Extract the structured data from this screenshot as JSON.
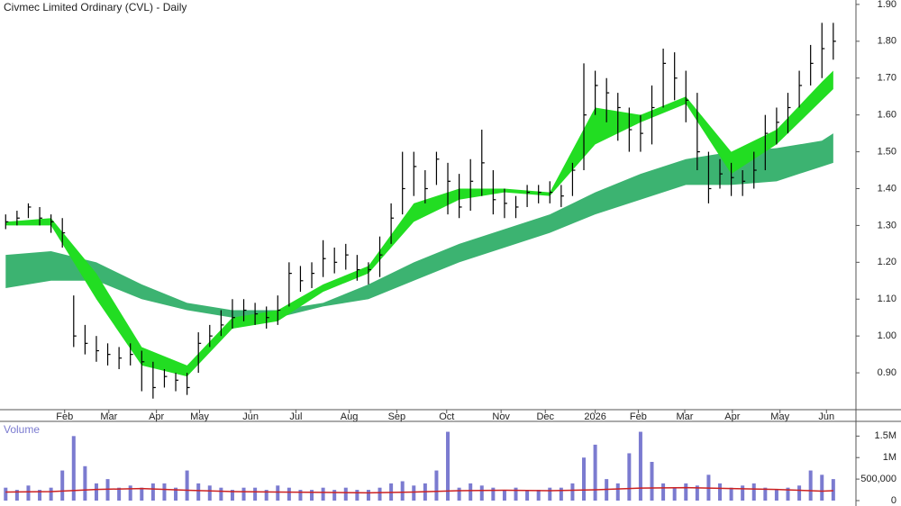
{
  "chart_data": [
    {
      "type": "ohlc",
      "title": "Civmec Limited Ordinary (CVL) - Daily",
      "xlim": [
        -0.5,
        75
      ],
      "xticks": [
        {
          "value": 5.2,
          "label": "Feb"
        },
        {
          "value": 9.1,
          "label": "Mar"
        },
        {
          "value": 13.3,
          "label": "Apr"
        },
        {
          "value": 17.1,
          "label": "May"
        },
        {
          "value": 21.6,
          "label": "Jun"
        },
        {
          "value": 25.6,
          "label": "Jul"
        },
        {
          "value": 30.3,
          "label": "Aug"
        },
        {
          "value": 34.5,
          "label": "Sep"
        },
        {
          "value": 38.9,
          "label": "Oct"
        },
        {
          "value": 43.7,
          "label": "Nov"
        },
        {
          "value": 47.6,
          "label": "Dec"
        },
        {
          "value": 52,
          "label": "2026"
        },
        {
          "value": 55.8,
          "label": "Feb"
        },
        {
          "value": 59.9,
          "label": "Mar"
        },
        {
          "value": 64.1,
          "label": "Apr"
        },
        {
          "value": 68.3,
          "label": "May"
        },
        {
          "value": 72.4,
          "label": "Jun"
        }
      ],
      "ylim": [
        0.8,
        1.912
      ],
      "yticks": [
        {
          "value": 0.9,
          "label": "0.90"
        },
        {
          "value": 1.0,
          "label": "1.00"
        },
        {
          "value": 1.1,
          "label": "1.10"
        },
        {
          "value": 1.2,
          "label": "1.20"
        },
        {
          "value": 1.3,
          "label": "1.30"
        },
        {
          "value": 1.4,
          "label": "1.40"
        },
        {
          "value": 1.5,
          "label": "1.50"
        },
        {
          "value": 1.6,
          "label": "1.60"
        },
        {
          "value": 1.7,
          "label": "1.70"
        },
        {
          "value": 1.8,
          "label": "1.80"
        },
        {
          "value": 1.9,
          "label": "1.90"
        }
      ],
      "color": "#000000",
      "x": [
        0,
        1,
        2,
        3,
        4,
        5,
        6,
        7,
        8,
        9,
        10,
        11,
        12,
        13,
        14,
        15,
        16,
        17,
        18,
        19,
        20,
        21,
        22,
        23,
        24,
        25,
        26,
        27,
        28,
        29,
        30,
        31,
        32,
        33,
        34,
        35,
        36,
        37,
        38,
        39,
        40,
        41,
        42,
        43,
        44,
        45,
        46,
        47,
        48,
        49,
        50,
        51,
        52,
        53,
        54,
        55,
        56,
        57,
        58,
        59,
        60,
        61,
        62,
        63,
        64,
        65,
        66,
        67,
        68,
        69,
        70,
        71,
        72,
        73
      ],
      "high": [
        1.33,
        1.34,
        1.36,
        1.35,
        1.33,
        1.32,
        1.11,
        1.03,
        1.0,
        0.98,
        0.97,
        0.98,
        0.96,
        0.93,
        0.91,
        0.9,
        0.9,
        1.01,
        1.03,
        1.07,
        1.1,
        1.1,
        1.09,
        1.08,
        1.11,
        1.2,
        1.19,
        1.2,
        1.26,
        1.24,
        1.25,
        1.22,
        1.2,
        1.27,
        1.36,
        1.5,
        1.5,
        1.45,
        1.5,
        1.47,
        1.44,
        1.48,
        1.56,
        1.45,
        1.4,
        1.38,
        1.41,
        1.41,
        1.42,
        1.41,
        1.47,
        1.74,
        1.72,
        1.7,
        1.66,
        1.62,
        1.6,
        1.68,
        1.78,
        1.77,
        1.72,
        1.66,
        1.5,
        1.48,
        1.47,
        1.45,
        1.5,
        1.6,
        1.62,
        1.66,
        1.72,
        1.79,
        1.85,
        1.85
      ],
      "low": [
        1.29,
        1.3,
        1.32,
        1.3,
        1.28,
        1.24,
        0.97,
        0.95,
        0.93,
        0.92,
        0.91,
        0.92,
        0.85,
        0.83,
        0.86,
        0.85,
        0.84,
        0.9,
        0.97,
        1.0,
        1.02,
        1.04,
        1.03,
        1.02,
        1.03,
        1.08,
        1.12,
        1.13,
        1.16,
        1.17,
        1.18,
        1.15,
        1.14,
        1.16,
        1.25,
        1.33,
        1.38,
        1.36,
        1.41,
        1.33,
        1.32,
        1.34,
        1.38,
        1.33,
        1.32,
        1.32,
        1.35,
        1.36,
        1.36,
        1.35,
        1.38,
        1.45,
        1.6,
        1.58,
        1.53,
        1.5,
        1.5,
        1.52,
        1.62,
        1.64,
        1.58,
        1.45,
        1.36,
        1.4,
        1.38,
        1.38,
        1.4,
        1.45,
        1.52,
        1.55,
        1.62,
        1.68,
        1.7,
        1.75
      ],
      "close": [
        1.31,
        1.32,
        1.35,
        1.32,
        1.31,
        1.28,
        1.0,
        0.98,
        0.96,
        0.95,
        0.94,
        0.95,
        0.93,
        0.86,
        0.89,
        0.88,
        0.86,
        0.98,
        1.0,
        1.03,
        1.05,
        1.07,
        1.06,
        1.05,
        1.07,
        1.17,
        1.15,
        1.17,
        1.21,
        1.2,
        1.22,
        1.18,
        1.18,
        1.22,
        1.32,
        1.4,
        1.46,
        1.4,
        1.48,
        1.42,
        1.35,
        1.42,
        1.47,
        1.37,
        1.36,
        1.35,
        1.39,
        1.39,
        1.39,
        1.38,
        1.45,
        1.6,
        1.68,
        1.66,
        1.62,
        1.56,
        1.55,
        1.62,
        1.74,
        1.7,
        1.64,
        1.5,
        1.4,
        1.44,
        1.43,
        1.42,
        1.45,
        1.55,
        1.58,
        1.62,
        1.68,
        1.74,
        1.78,
        1.8
      ],
      "band_x": [
        0,
        4,
        8,
        12,
        16,
        20,
        24,
        28,
        32,
        36,
        40,
        44,
        48,
        52,
        56,
        60,
        64,
        68,
        72,
        73
      ],
      "bands": [
        {
          "color": "#3cb371",
          "upper": [
            1.22,
            1.23,
            1.2,
            1.14,
            1.09,
            1.07,
            1.07,
            1.09,
            1.14,
            1.2,
            1.25,
            1.29,
            1.33,
            1.39,
            1.44,
            1.48,
            1.5,
            1.51,
            1.53,
            1.55
          ],
          "lower": [
            1.13,
            1.15,
            1.15,
            1.1,
            1.07,
            1.05,
            1.05,
            1.08,
            1.1,
            1.15,
            1.2,
            1.24,
            1.28,
            1.33,
            1.37,
            1.41,
            1.41,
            1.42,
            1.46,
            1.47
          ]
        },
        {
          "color": "#22dd22",
          "upper": [
            1.31,
            1.32,
            1.17,
            0.97,
            0.92,
            1.05,
            1.07,
            1.14,
            1.19,
            1.36,
            1.4,
            1.4,
            1.39,
            1.62,
            1.6,
            1.65,
            1.5,
            1.56,
            1.69,
            1.72
          ],
          "lower": [
            1.3,
            1.3,
            1.1,
            0.92,
            0.89,
            1.02,
            1.04,
            1.12,
            1.17,
            1.31,
            1.37,
            1.39,
            1.38,
            1.52,
            1.58,
            1.63,
            1.44,
            1.52,
            1.64,
            1.67
          ]
        }
      ]
    },
    {
      "type": "bar",
      "title": "Volume",
      "color": "#7b7bd0",
      "xlim": [
        -0.5,
        75
      ],
      "ylim": [
        0,
        1800000
      ],
      "yticks": [
        0,
        {
          "value": 500000,
          "label": "500,000"
        },
        {
          "value": 1000000,
          "label": "1M"
        },
        {
          "value": 1500000,
          "label": "1.5M"
        }
      ],
      "x": [
        0,
        1,
        2,
        3,
        4,
        5,
        6,
        7,
        8,
        9,
        10,
        11,
        12,
        13,
        14,
        15,
        16,
        17,
        18,
        19,
        20,
        21,
        22,
        23,
        24,
        25,
        26,
        27,
        28,
        29,
        30,
        31,
        32,
        33,
        34,
        35,
        36,
        37,
        38,
        39,
        40,
        41,
        42,
        43,
        44,
        45,
        46,
        47,
        48,
        49,
        50,
        51,
        52,
        53,
        54,
        55,
        56,
        57,
        58,
        59,
        60,
        61,
        62,
        63,
        64,
        65,
        66,
        67,
        68,
        69,
        70,
        71,
        72,
        73
      ],
      "values": [
        300000,
        250000,
        350000,
        250000,
        300000,
        700000,
        1500000,
        800000,
        400000,
        500000,
        300000,
        350000,
        300000,
        400000,
        400000,
        300000,
        700000,
        400000,
        350000,
        300000,
        250000,
        300000,
        300000,
        250000,
        350000,
        300000,
        250000,
        250000,
        300000,
        250000,
        300000,
        250000,
        250000,
        300000,
        400000,
        450000,
        350000,
        400000,
        700000,
        1600000,
        300000,
        400000,
        350000,
        300000,
        250000,
        300000,
        250000,
        250000,
        300000,
        300000,
        400000,
        1000000,
        1300000,
        500000,
        400000,
        1100000,
        1600000,
        900000,
        400000,
        300000,
        400000,
        350000,
        600000,
        400000,
        300000,
        350000,
        400000,
        300000,
        250000,
        300000,
        350000,
        700000,
        600000,
        500000
      ],
      "average": {
        "color": "#cc2222",
        "x": [
          0,
          4,
          8,
          12,
          16,
          20,
          24,
          28,
          32,
          36,
          40,
          44,
          48,
          52,
          56,
          60,
          64,
          68,
          72,
          73
        ],
        "values": [
          200000,
          210000,
          260000,
          280000,
          240000,
          210000,
          200000,
          190000,
          180000,
          200000,
          230000,
          240000,
          230000,
          250000,
          290000,
          300000,
          280000,
          260000,
          220000,
          230000
        ]
      }
    }
  ]
}
